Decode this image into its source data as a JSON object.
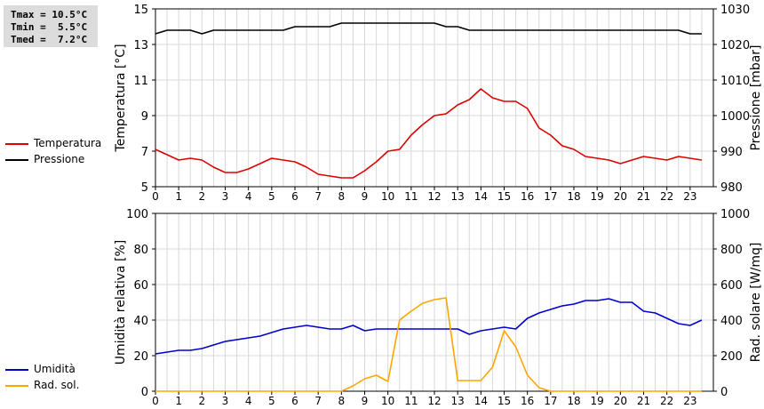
{
  "stats": {
    "rows": [
      "Tmax = 10.5°C",
      "Tmin =  5.5°C",
      "Tmed =  7.2°C"
    ]
  },
  "chart_data": [
    {
      "type": "line",
      "x_ticks": [
        "0",
        "1",
        "2",
        "3",
        "4",
        "5",
        "6",
        "7",
        "8",
        "9",
        "10",
        "11",
        "12",
        "13",
        "14",
        "15",
        "16",
        "17",
        "18",
        "19",
        "20",
        "21",
        "22",
        "23"
      ],
      "y_ticks": [
        "5",
        "7",
        "9",
        "11",
        "13",
        "15"
      ],
      "y2_ticks": [
        "980",
        "990",
        "1000",
        "1010",
        "1020",
        "1030"
      ],
      "ylabel": "Temperatura [°C]",
      "y2label": "Pressione [mbar]",
      "ylim": [
        5,
        15
      ],
      "y2lim": [
        980,
        1030
      ],
      "xlim": [
        0,
        24
      ],
      "grid": true,
      "legend": "left",
      "series": [
        {
          "name": "Temperatura",
          "axis": "left",
          "color": "#dd0000",
          "x": [
            0,
            0.5,
            1,
            1.5,
            2,
            2.5,
            3,
            3.5,
            4,
            4.5,
            5,
            5.5,
            6,
            6.5,
            7,
            7.5,
            8,
            8.5,
            9,
            9.5,
            10,
            10.5,
            11,
            11.5,
            12,
            12.5,
            13,
            13.5,
            14,
            14.5,
            15,
            15.5,
            16,
            16.5,
            17,
            17.5,
            18,
            18.5,
            19,
            19.5,
            20,
            20.5,
            21,
            21.5,
            22,
            22.5,
            23,
            23.5
          ],
          "values": [
            7.1,
            6.8,
            6.5,
            6.6,
            6.5,
            6.1,
            5.8,
            5.8,
            6.0,
            6.3,
            6.6,
            6.5,
            6.4,
            6.1,
            5.7,
            5.6,
            5.5,
            5.5,
            5.9,
            6.4,
            7.0,
            7.1,
            7.9,
            8.5,
            9.0,
            9.1,
            9.6,
            9.9,
            10.5,
            10.0,
            9.8,
            9.8,
            9.4,
            8.3,
            7.9,
            7.3,
            7.1,
            6.7,
            6.6,
            6.5,
            6.3,
            6.5,
            6.7,
            6.6,
            6.5,
            6.7,
            6.6,
            6.5
          ]
        },
        {
          "name": "Pressione",
          "axis": "right",
          "color": "#000000",
          "x": [
            0,
            0.5,
            1,
            1.5,
            2,
            2.5,
            3,
            3.5,
            4,
            4.5,
            5,
            5.5,
            6,
            6.5,
            7,
            7.5,
            8,
            8.5,
            9,
            9.5,
            10,
            10.5,
            11,
            11.5,
            12,
            12.5,
            13,
            13.5,
            14,
            14.5,
            15,
            15.5,
            16,
            16.5,
            17,
            17.5,
            18,
            18.5,
            19,
            19.5,
            20,
            20.5,
            21,
            21.5,
            22,
            22.5,
            23,
            23.5
          ],
          "values": [
            1023,
            1024,
            1024,
            1024,
            1023,
            1024,
            1024,
            1024,
            1024,
            1024,
            1024,
            1024,
            1025,
            1025,
            1025,
            1025,
            1026,
            1026,
            1026,
            1026,
            1026,
            1026,
            1026,
            1026,
            1026,
            1025,
            1025,
            1024,
            1024,
            1024,
            1024,
            1024,
            1024,
            1024,
            1024,
            1024,
            1024,
            1024,
            1024,
            1024,
            1024,
            1024,
            1024,
            1024,
            1024,
            1024,
            1023,
            1023
          ]
        }
      ]
    },
    {
      "type": "line",
      "x_ticks": [
        "0",
        "1",
        "2",
        "3",
        "4",
        "5",
        "6",
        "7",
        "8",
        "9",
        "10",
        "11",
        "12",
        "13",
        "14",
        "15",
        "16",
        "17",
        "18",
        "19",
        "20",
        "21",
        "22",
        "23"
      ],
      "y_ticks": [
        "0",
        "20",
        "40",
        "60",
        "80",
        "100"
      ],
      "y2_ticks": [
        "0",
        "200",
        "400",
        "600",
        "800",
        "1000"
      ],
      "ylabel": "Umidità relativa [%]",
      "y2label": "Rad. solare [W/mq]",
      "ylim": [
        0,
        100
      ],
      "y2lim": [
        0,
        1000
      ],
      "xlim": [
        0,
        24
      ],
      "grid": true,
      "legend": "left",
      "series": [
        {
          "name": "Umidità",
          "axis": "left",
          "color": "#0000cc",
          "x": [
            0,
            0.5,
            1,
            1.5,
            2,
            2.5,
            3,
            3.5,
            4,
            4.5,
            5,
            5.5,
            6,
            6.5,
            7,
            7.5,
            8,
            8.5,
            9,
            9.5,
            10,
            10.5,
            11,
            11.5,
            12,
            12.5,
            13,
            13.5,
            14,
            14.5,
            15,
            15.5,
            16,
            16.5,
            17,
            17.5,
            18,
            18.5,
            19,
            19.5,
            20,
            20.5,
            21,
            21.5,
            22,
            22.5,
            23,
            23.5
          ],
          "values": [
            21,
            22,
            23,
            23,
            24,
            26,
            28,
            29,
            30,
            31,
            33,
            35,
            36,
            37,
            36,
            35,
            35,
            37,
            34,
            35,
            35,
            35,
            35,
            35,
            35,
            35,
            35,
            32,
            34,
            35,
            36,
            35,
            41,
            44,
            46,
            48,
            49,
            51,
            51,
            52,
            50,
            50,
            45,
            44,
            41,
            38,
            37,
            40
          ]
        },
        {
          "name": "Rad. sol.",
          "axis": "right",
          "color": "#ffa500",
          "x": [
            0,
            0.5,
            1,
            1.5,
            2,
            2.5,
            3,
            3.5,
            4,
            4.5,
            5,
            5.5,
            6,
            6.5,
            7,
            7.5,
            8,
            8.5,
            9,
            9.5,
            10,
            10.5,
            11,
            11.5,
            12,
            12.5,
            13,
            13.5,
            14,
            14.5,
            15,
            15.5,
            16,
            16.5,
            17,
            17.5,
            18,
            18.5,
            19,
            19.5,
            20,
            20.5,
            21,
            21.5,
            22,
            22.5,
            23,
            23.5
          ],
          "values": [
            0,
            0,
            0,
            0,
            0,
            0,
            0,
            0,
            0,
            0,
            0,
            0,
            0,
            0,
            0,
            0,
            0,
            30,
            70,
            90,
            55,
            400,
            450,
            495,
            515,
            525,
            60,
            60,
            60,
            135,
            340,
            250,
            90,
            20,
            0,
            0,
            0,
            0,
            0,
            0,
            0,
            0,
            0,
            0,
            0,
            0,
            0,
            0
          ]
        }
      ]
    }
  ]
}
